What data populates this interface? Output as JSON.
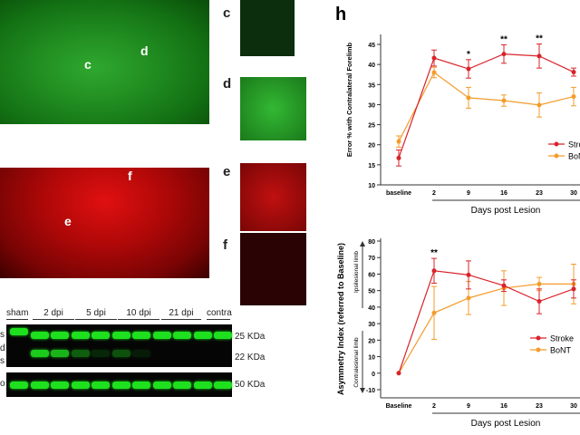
{
  "panels": {
    "main_green": {
      "labels": [
        "c",
        "d"
      ]
    },
    "main_red": {
      "labels": [
        "e",
        "f"
      ]
    },
    "insets": [
      "c",
      "d",
      "e",
      "f"
    ],
    "h_label": "h"
  },
  "blot": {
    "lanes": [
      "sham",
      "2 dpi",
      "5 dpi",
      "10 dpi",
      "21 dpi",
      "contra"
    ],
    "row_label_fragments": [
      "s",
      "d",
      "s",
      "o"
    ],
    "kda": [
      "25 KDa",
      "22 KDa",
      "50 KDa"
    ]
  },
  "colors": {
    "stroke": "#d8232a",
    "bont": "#f39c2b"
  },
  "chart_data": [
    {
      "type": "line",
      "title": "",
      "xlabel": "Days post Lesion",
      "ylabel": "Error % with Contralateral Forelimb",
      "categories": [
        "baseline",
        "2",
        "9",
        "16",
        "23",
        "30"
      ],
      "ylim": [
        10,
        47
      ],
      "yticks": [
        10,
        15,
        20,
        25,
        30,
        35,
        40,
        45
      ],
      "series": [
        {
          "name": "Stroke",
          "legend_text": "Stroke",
          "values": [
            16.7,
            41.6,
            38.9,
            42.6,
            42.1,
            38.1
          ],
          "errors": [
            2,
            2,
            2.3,
            2.3,
            3,
            1
          ]
        },
        {
          "name": "BoNT",
          "legend_text": "BoNT",
          "values": [
            20.8,
            38,
            31.7,
            31,
            29.9,
            32
          ],
          "errors": [
            1.4,
            1.3,
            2.6,
            1.4,
            3,
            2.3
          ]
        }
      ],
      "significance": [
        "",
        "",
        "*",
        "**",
        "**",
        ""
      ],
      "legend": "right"
    },
    {
      "type": "line",
      "title": "",
      "xlabel": "Days post Lesion",
      "ylabel": "Asymmetry Index (referred to Baseline)",
      "categories": [
        "Baseline",
        "2",
        "9",
        "16",
        "23",
        "30"
      ],
      "ylim": [
        -15,
        80
      ],
      "yticks": [
        -10,
        0,
        10,
        20,
        30,
        40,
        50,
        60,
        70,
        80
      ],
      "side_labels": [
        "Ipsilesional limb",
        "Contralesional limb"
      ],
      "series": [
        {
          "name": "Stroke",
          "legend_text": "Stroke",
          "values": [
            0,
            62,
            59.5,
            53,
            43.5,
            51
          ],
          "errors": [
            0,
            7.5,
            8.5,
            3.5,
            7.5,
            5.5
          ]
        },
        {
          "name": "BoNT",
          "legend_text": "BoNT",
          "values": [
            0,
            36.5,
            45.5,
            51.5,
            54,
            54
          ],
          "errors": [
            0,
            16,
            10,
            10.5,
            4,
            12
          ]
        }
      ],
      "significance": [
        "",
        "**",
        "",
        "",
        "",
        ""
      ],
      "legend": "right"
    }
  ]
}
